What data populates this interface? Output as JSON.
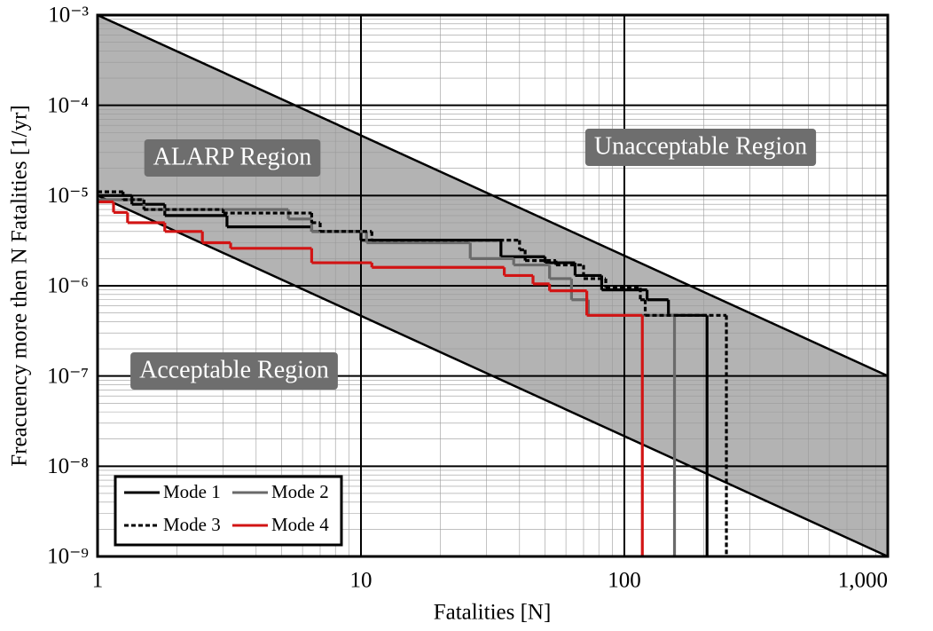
{
  "chart_data": {
    "type": "step",
    "xlabel": "Fatalities [N]",
    "ylabel": "Freacuency more then N Fatalities [1/yr]",
    "xscale": "log",
    "yscale": "log",
    "grid": true,
    "minor_grid": true,
    "legend": "lower left",
    "xlim": [
      1,
      1000
    ],
    "ylim": [
      1e-09,
      0.001
    ],
    "xticks": [
      1,
      10,
      100,
      {
        "value": 1000,
        "label": "1,000"
      }
    ],
    "yticks": [
      {
        "value": 1e-09,
        "label": "10⁻⁹"
      },
      {
        "value": 1e-08,
        "label": "10⁻⁸"
      },
      {
        "value": 1e-07,
        "label": "10⁻⁷"
      },
      {
        "value": 1e-06,
        "label": "10⁻⁶"
      },
      {
        "value": 1e-05,
        "label": "10⁻⁵"
      },
      {
        "value": 0.0001,
        "label": "10⁻⁴"
      },
      {
        "value": 0.001,
        "label": "10⁻³"
      }
    ],
    "band_color": "#b3b3b3",
    "limit_lines": [
      {
        "x": [
          1,
          1000
        ],
        "values": [
          0.001,
          1e-07
        ]
      },
      {
        "x": [
          1,
          1000
        ],
        "values": [
          1e-05,
          1e-09
        ]
      }
    ],
    "annotations": [
      "ALARP Region",
      "Unacceptable Region",
      "Acceptable Region"
    ],
    "series": [
      {
        "name": "Mode 1",
        "color": "#000000",
        "dash": false,
        "x": [
          1,
          1.35,
          1.8,
          3.1,
          6.5,
          10,
          34,
          50,
          65,
          82,
          122,
          147,
          206
        ],
        "values": [
          1e-05,
          8e-06,
          6e-06,
          4.5e-06,
          4e-06,
          3.2e-06,
          2.1e-06,
          1.8e-06,
          1.3e-06,
          9e-07,
          7e-07,
          4.7e-07,
          1e-09
        ]
      },
      {
        "name": "Mode 2",
        "color": "#6a6a6a",
        "dash": false,
        "x": [
          1,
          1.5,
          5.3,
          6.5,
          10.5,
          26,
          38,
          52,
          63,
          73,
          155
        ],
        "values": [
          9e-06,
          7e-06,
          5.5e-06,
          4e-06,
          3e-06,
          2e-06,
          1.7e-06,
          1.2e-06,
          7e-07,
          4.7e-07,
          1e-09
        ]
      },
      {
        "name": "Mode 3",
        "color": "#000000",
        "dash": true,
        "x": [
          1,
          1.25,
          1.5,
          3,
          6.5,
          7,
          11,
          40,
          42,
          55,
          70,
          85,
          115,
          120,
          244
        ],
        "values": [
          1.1e-05,
          9e-06,
          7e-06,
          6.4e-06,
          5e-06,
          4e-06,
          3.2e-06,
          2.5e-06,
          1.9e-06,
          1.7e-06,
          1.2e-06,
          9.5e-07,
          7e-07,
          4.7e-07,
          1e-09
        ]
      },
      {
        "name": "Mode 4",
        "color": "#d21414",
        "dash": false,
        "x": [
          1,
          1.15,
          1.3,
          1.8,
          2.5,
          3.2,
          6.5,
          11,
          35,
          45,
          52,
          72,
          117
        ],
        "values": [
          8.5e-06,
          6.5e-06,
          5e-06,
          4e-06,
          3e-06,
          2.6e-06,
          1.8e-06,
          1.6e-06,
          1.3e-06,
          1.05e-06,
          8.8e-07,
          4.7e-07,
          1e-09
        ]
      }
    ]
  }
}
